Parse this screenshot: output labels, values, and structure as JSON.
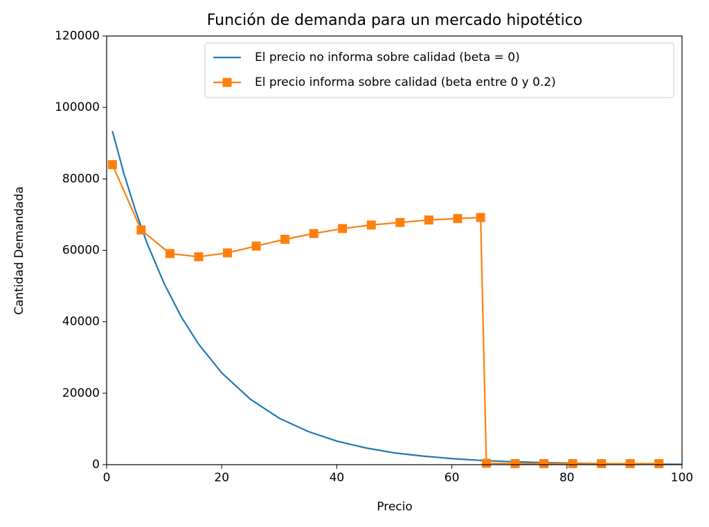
{
  "chart_data": {
    "type": "line",
    "title": "Función de demanda para un mercado hipotético",
    "x_label": "Precio",
    "y_label": "Cantidad Demandada",
    "xlim": [
      0,
      100
    ],
    "xticks": [
      0,
      20,
      40,
      60,
      80,
      100
    ],
    "ylim": [
      0,
      120000
    ],
    "yticks": [
      0,
      20000,
      40000,
      60000,
      80000,
      100000,
      120000
    ],
    "legend": "upper right",
    "grid": false,
    "series": [
      {
        "name": "El precio no informa sobre calidad (beta = 0)",
        "color": "#1f77b4",
        "marker": "none",
        "x": [
          1,
          3,
          5,
          7,
          10,
          13,
          16,
          20,
          25,
          30,
          35,
          40,
          45,
          50,
          55,
          60,
          65,
          70,
          75,
          80,
          85,
          90,
          95,
          100
        ],
        "values": [
          93400,
          81500,
          71200,
          62100,
          50700,
          41300,
          33700,
          25700,
          18300,
          13000,
          9300,
          6600,
          4700,
          3300,
          2400,
          1700,
          1200,
          860,
          610,
          430,
          310,
          220,
          160,
          110
        ]
      },
      {
        "name": "El precio informa sobre calidad (beta entre 0 y 0.2)",
        "color": "#ff7f0e",
        "marker": "square",
        "x": [
          1,
          6,
          11,
          16,
          21,
          26,
          31,
          36,
          41,
          46,
          51,
          56,
          61,
          65,
          66,
          71,
          76,
          81,
          86,
          91,
          96
        ],
        "values": [
          84000,
          65700,
          59100,
          58200,
          59300,
          61200,
          63100,
          64700,
          66100,
          67100,
          67800,
          68500,
          68900,
          69200,
          400,
          300,
          300,
          300,
          300,
          300,
          300
        ]
      }
    ]
  }
}
